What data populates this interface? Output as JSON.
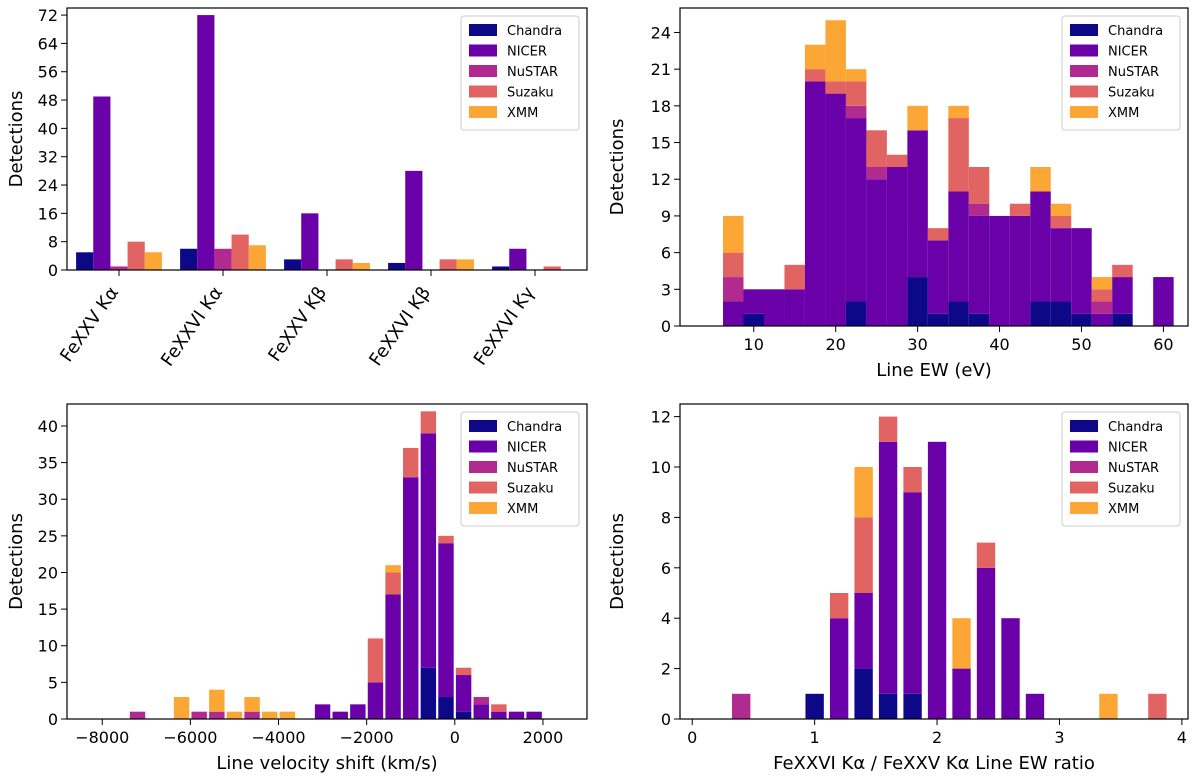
{
  "colors": {
    "Chandra": "#0d0887",
    "NICER": "#6a00a8",
    "NuSTAR": "#b12a90",
    "Suzaku": "#e16462",
    "XMM": "#fca636"
  },
  "legend_labels": [
    "Chandra",
    "NICER",
    "NuSTAR",
    "Suzaku",
    "XMM"
  ],
  "chart_data": [
    {
      "type": "bar",
      "layout": "grouped",
      "xlabel": "",
      "ylabel": "Detections",
      "ylim": [
        0,
        74
      ],
      "yticks": [
        0,
        8,
        16,
        24,
        32,
        40,
        48,
        56,
        64,
        72
      ],
      "categories": [
        "FeXXV Kα",
        "FeXXVI Kα",
        "FeXXV Kβ",
        "FeXXVI Kβ",
        "FeXXVI Kγ"
      ],
      "series": [
        {
          "name": "Chandra",
          "values": [
            5,
            6,
            3,
            2,
            1
          ]
        },
        {
          "name": "NICER",
          "values": [
            49,
            72,
            16,
            28,
            6
          ]
        },
        {
          "name": "NuSTAR",
          "values": [
            1,
            6,
            0,
            0,
            0
          ]
        },
        {
          "name": "Suzaku",
          "values": [
            8,
            10,
            3,
            3,
            1
          ]
        },
        {
          "name": "XMM",
          "values": [
            5,
            7,
            2,
            3,
            0
          ]
        }
      ],
      "legend_position": "top-right"
    },
    {
      "type": "bar",
      "layout": "stacked-histogram",
      "xlabel": "Line EW (eV)",
      "ylabel": "Detections",
      "xlim": [
        1,
        63
      ],
      "ylim": [
        0,
        26
      ],
      "xticks": [
        10,
        20,
        30,
        40,
        50,
        60
      ],
      "yticks": [
        0,
        3,
        6,
        9,
        12,
        15,
        18,
        21,
        24
      ],
      "bin_width": 2.5,
      "x": [
        7.5,
        10,
        12.5,
        15,
        17.5,
        20,
        22.5,
        25,
        27.5,
        30,
        32.5,
        35,
        37.5,
        40,
        42.5,
        45,
        47.5,
        50,
        52.5,
        55,
        60
      ],
      "series": [
        {
          "name": "Chandra",
          "values": [
            0,
            1,
            0,
            0,
            0,
            0,
            2,
            0,
            0,
            4,
            1,
            2,
            1,
            0,
            0,
            2,
            2,
            1,
            0,
            1,
            0
          ]
        },
        {
          "name": "NICER",
          "values": [
            2,
            2,
            3,
            3,
            20,
            19,
            15,
            12,
            13,
            12,
            6,
            9,
            8,
            9,
            9,
            9,
            6,
            7,
            1,
            3,
            4
          ]
        },
        {
          "name": "NuSTAR",
          "values": [
            2,
            0,
            0,
            0,
            0,
            0,
            1,
            1,
            0,
            0,
            0,
            0,
            1,
            0,
            0,
            0,
            0,
            0,
            1,
            0,
            0
          ]
        },
        {
          "name": "Suzaku",
          "values": [
            2,
            0,
            0,
            2,
            1,
            1,
            2,
            3,
            1,
            0,
            1,
            6,
            3,
            0,
            1,
            0,
            1,
            0,
            1,
            1,
            0
          ]
        },
        {
          "name": "XMM",
          "values": [
            3,
            0,
            0,
            0,
            2,
            5,
            1,
            0,
            0,
            2,
            0,
            1,
            0,
            0,
            0,
            2,
            1,
            0,
            1,
            0,
            0
          ]
        }
      ],
      "legend_position": "top-right"
    },
    {
      "type": "bar",
      "layout": "stacked-histogram",
      "xlabel": "Line velocity shift (km/s)",
      "ylabel": "Detections",
      "xlim": [
        -8800,
        3000
      ],
      "ylim": [
        0,
        43
      ],
      "xticks": [
        -8000,
        -6000,
        -4000,
        -2000,
        0,
        2000
      ],
      "yticks": [
        0,
        5,
        10,
        15,
        20,
        25,
        30,
        35,
        40
      ],
      "bin_width": 350,
      "x": [
        -7200,
        -6200,
        -5800,
        -5400,
        -5000,
        -4600,
        -4200,
        -3800,
        -3400,
        -3000,
        -2600,
        -2200,
        -1800,
        -1400,
        -1000,
        -600,
        -200,
        200,
        600,
        1000,
        1400,
        1800
      ],
      "series": [
        {
          "name": "Chandra",
          "values": [
            0,
            0,
            0,
            0,
            0,
            0,
            0,
            0,
            0,
            0,
            0,
            0,
            0,
            0,
            0,
            7,
            3,
            1,
            0,
            0,
            0,
            0
          ]
        },
        {
          "name": "NICER",
          "values": [
            0,
            0,
            0,
            0,
            0,
            0,
            0,
            0,
            0,
            2,
            1,
            2,
            5,
            17,
            33,
            32,
            21,
            5,
            2,
            1,
            1,
            1
          ]
        },
        {
          "name": "NuSTAR",
          "values": [
            1,
            0,
            1,
            1,
            0,
            1,
            0,
            0,
            0,
            0,
            0,
            0,
            0,
            0,
            0,
            0,
            0,
            0,
            1,
            0,
            0,
            0
          ]
        },
        {
          "name": "Suzaku",
          "values": [
            0,
            0,
            0,
            0,
            0,
            0,
            0,
            0,
            0,
            0,
            0,
            0,
            6,
            3,
            4,
            3,
            1,
            1,
            0,
            1,
            0,
            0
          ]
        },
        {
          "name": "XMM",
          "values": [
            0,
            3,
            0,
            3,
            1,
            2,
            1,
            1,
            0,
            0,
            0,
            0,
            0,
            1,
            0,
            0,
            0,
            0,
            0,
            0,
            0,
            0
          ]
        }
      ],
      "legend_position": "top-right"
    },
    {
      "type": "bar",
      "layout": "stacked-histogram",
      "xlabel": "FeXXVI Kα / FeXXV Kα Line EW ratio",
      "ylabel": "Detections",
      "xlim": [
        -0.1,
        4.05
      ],
      "ylim": [
        0,
        12.5
      ],
      "xticks": [
        0,
        1,
        2,
        3,
        4
      ],
      "yticks": [
        0,
        2,
        4,
        6,
        8,
        10,
        12
      ],
      "bin_width": 0.15,
      "x": [
        0.4,
        1.0,
        1.2,
        1.4,
        1.6,
        1.8,
        2.0,
        2.2,
        2.4,
        2.6,
        2.8,
        3.4,
        3.8
      ],
      "series": [
        {
          "name": "Chandra",
          "values": [
            0,
            1,
            0,
            2,
            1,
            1,
            0,
            0,
            0,
            0,
            0,
            0,
            0
          ]
        },
        {
          "name": "NICER",
          "values": [
            0,
            0,
            4,
            3,
            10,
            8,
            11,
            2,
            6,
            4,
            1,
            0,
            0
          ]
        },
        {
          "name": "NuSTAR",
          "values": [
            1,
            0,
            0,
            0,
            0,
            0,
            0,
            0,
            0,
            0,
            0,
            0,
            0
          ]
        },
        {
          "name": "Suzaku",
          "values": [
            0,
            0,
            1,
            3,
            1,
            1,
            0,
            0,
            1,
            0,
            0,
            0,
            1
          ]
        },
        {
          "name": "XMM",
          "values": [
            0,
            0,
            0,
            2,
            0,
            0,
            0,
            2,
            0,
            0,
            0,
            1,
            0
          ]
        }
      ],
      "legend_position": "top-right"
    }
  ]
}
